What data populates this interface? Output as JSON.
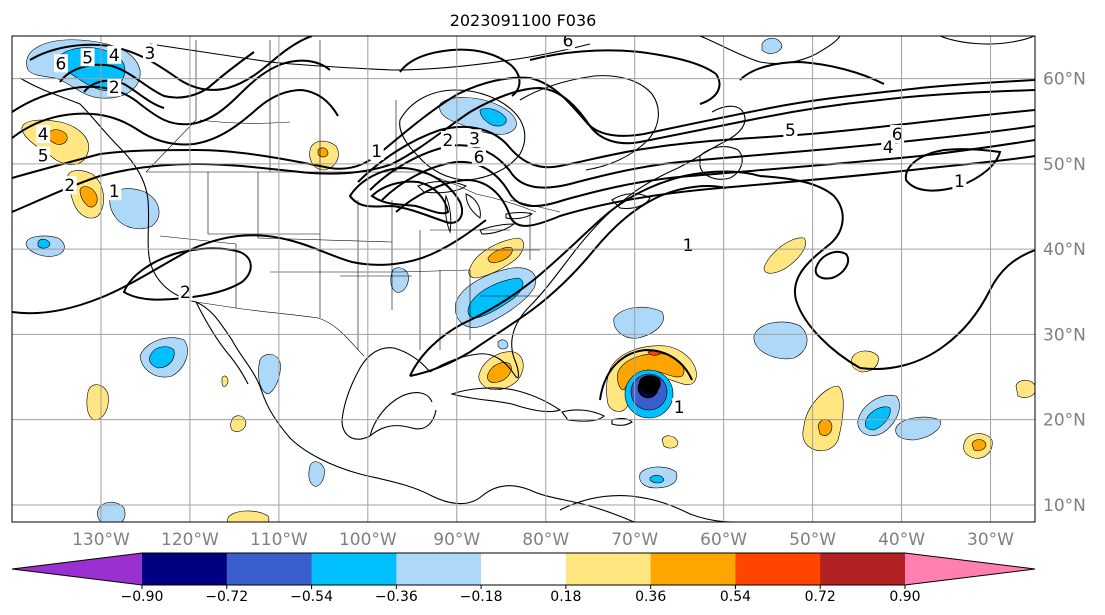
{
  "title": "2023091100 F036",
  "map": {
    "lon_range": [
      -140,
      -25
    ],
    "lat_range": [
      8,
      65
    ],
    "grid_lons": [
      -130,
      -120,
      -110,
      -100,
      -90,
      -80,
      -70,
      -60,
      -50,
      -40,
      -30
    ],
    "grid_lats": [
      10,
      20,
      30,
      40,
      50,
      60
    ],
    "lon_labels": [
      "130°W",
      "120°W",
      "110°W",
      "100°W",
      "90°W",
      "80°W",
      "70°W",
      "60°W",
      "50°W",
      "40°W",
      "30°W"
    ],
    "lat_labels": [
      "10°N",
      "20°N",
      "30°N",
      "40°N",
      "50°N",
      "60°N"
    ],
    "contour_labels": [
      {
        "text": "6",
        "lon": -134.5,
        "lat": 61.8
      },
      {
        "text": "5",
        "lon": -131.5,
        "lat": 62.5
      },
      {
        "text": "4",
        "lon": -128.5,
        "lat": 62.8
      },
      {
        "text": "3",
        "lon": -124.5,
        "lat": 63.0
      },
      {
        "text": "2",
        "lon": -128.5,
        "lat": 59.0
      },
      {
        "text": "4",
        "lon": -136.5,
        "lat": 53.5
      },
      {
        "text": "5",
        "lon": -136.5,
        "lat": 51.0
      },
      {
        "text": "2",
        "lon": -133.5,
        "lat": 47.5
      },
      {
        "text": "1",
        "lon": -128.5,
        "lat": 46.8
      },
      {
        "text": "2",
        "lon": -120.5,
        "lat": 35.0
      },
      {
        "text": "1",
        "lon": -99.0,
        "lat": 51.5
      },
      {
        "text": "2",
        "lon": -91.0,
        "lat": 52.8
      },
      {
        "text": "3",
        "lon": -88.0,
        "lat": 53.0
      },
      {
        "text": "6",
        "lon": -87.5,
        "lat": 50.8
      },
      {
        "text": "6",
        "lon": -77.5,
        "lat": 64.5
      },
      {
        "text": "5",
        "lon": -52.5,
        "lat": 54.0
      },
      {
        "text": "6",
        "lon": -40.5,
        "lat": 53.5
      },
      {
        "text": "4",
        "lon": -41.5,
        "lat": 52.0
      },
      {
        "text": "1",
        "lon": -33.5,
        "lat": 48.0
      },
      {
        "text": "1",
        "lon": -64.0,
        "lat": 40.5
      },
      {
        "text": "1",
        "lon": -65.0,
        "lat": 21.5
      }
    ]
  },
  "colorbar": {
    "colors": [
      "#9b30d0",
      "#000080",
      "#3a5fcd",
      "#00bfff",
      "#add8f8",
      "#ffffff",
      "#ffe680",
      "#ffa500",
      "#ff4500",
      "#b22222",
      "#ff80b0"
    ],
    "tick_labels": [
      "−0.90",
      "−0.72",
      "−0.54",
      "−0.36",
      "−0.18",
      "0.18",
      "0.36",
      "0.54",
      "0.72",
      "0.90"
    ]
  }
}
